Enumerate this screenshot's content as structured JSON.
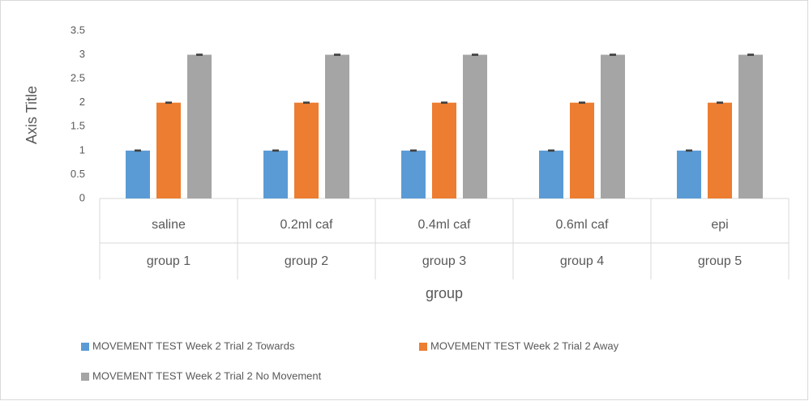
{
  "chart_data": {
    "type": "bar",
    "categories": [
      "saline",
      "0.2ml caf",
      "0.4ml caf",
      "0.6ml caf",
      "epi"
    ],
    "groups": [
      "group 1",
      "group 2",
      "group 3",
      "group 4",
      "group 5"
    ],
    "xlabel": "group",
    "ylabel": "Axis Title",
    "ylim": [
      0,
      3.5
    ],
    "yticks": [
      0,
      0.5,
      1,
      1.5,
      2,
      2.5,
      3,
      3.5
    ],
    "legend": "bottom",
    "series": [
      {
        "name": "MOVEMENT TEST Week 2 Trial 2 Towards",
        "color": "#5b9bd5",
        "values": [
          1,
          1,
          1,
          1,
          1
        ],
        "errors": [
          0.01,
          0.01,
          0.01,
          0.01,
          0.01
        ]
      },
      {
        "name": "MOVEMENT TEST Week 2 Trial 2 Away",
        "color": "#ed7d31",
        "values": [
          2,
          2,
          2,
          2,
          2
        ],
        "errors": [
          0.01,
          0.01,
          0.01,
          0.01,
          0.01
        ]
      },
      {
        "name": "MOVEMENT TEST Week 2 Trial 2 No Movement",
        "color": "#a5a5a5",
        "values": [
          3,
          3,
          3,
          3,
          3
        ],
        "errors": [
          0.01,
          0.01,
          0.01,
          0.01,
          0.01
        ]
      }
    ]
  }
}
